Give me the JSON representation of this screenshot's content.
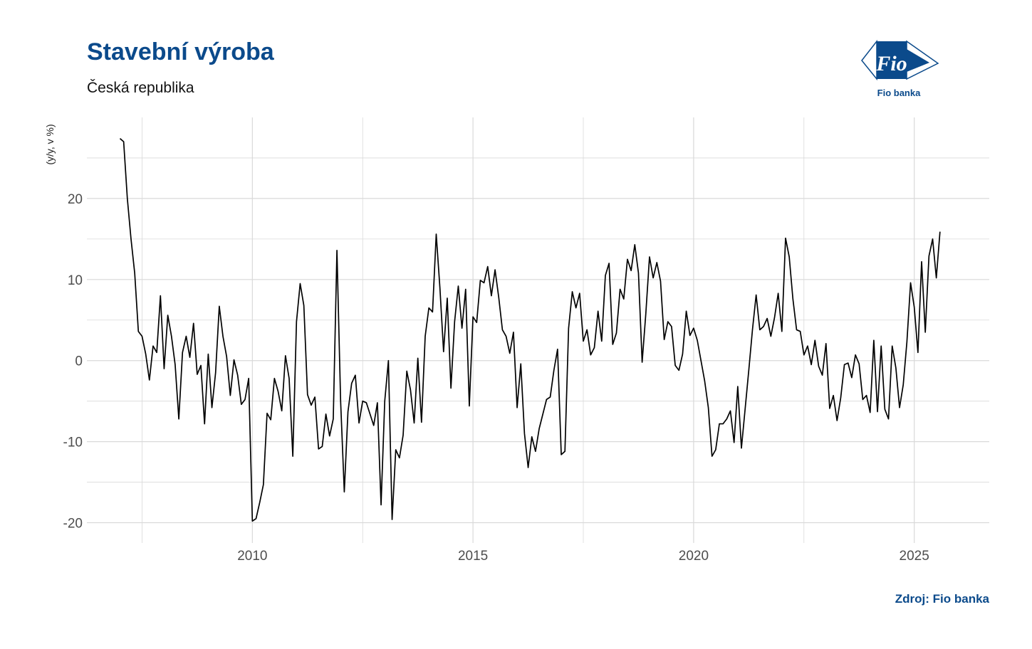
{
  "header": {
    "title": "Stavební výroba",
    "subtitle": "Česká republika"
  },
  "logo": {
    "mark_text": "Fio",
    "caption": "Fio banka",
    "color": "#0b4a8b"
  },
  "source": "Zdroj: Fio banka",
  "colors": {
    "title": "#0b4a8b",
    "line": "#000000",
    "grid": "#d9d9d9"
  },
  "chart_data": {
    "type": "line",
    "title": "Stavební výroba",
    "subtitle": "Česká republika",
    "ylabel": "(y/y, v %)",
    "xlabel": "",
    "x_start": "2007-01",
    "x_frequency": "monthly",
    "xlim": [
      2006.25,
      2026.7
    ],
    "ylim": [
      -22.5,
      30
    ],
    "x_ticks": [
      2010,
      2015,
      2020,
      2025
    ],
    "y_ticks": [
      -20,
      -10,
      0,
      10,
      20
    ],
    "grid": true,
    "legend": "none",
    "series": [
      {
        "values": [
          27.4,
          27.0,
          20.0,
          15.0,
          10.8,
          3.6,
          3.0,
          0.8,
          -2.4,
          1.8,
          1.0,
          8.0,
          -1.0,
          5.6,
          3.0,
          -0.5,
          -7.2,
          1.0,
          3.0,
          0.4,
          4.6,
          -1.7,
          -0.6,
          -7.8,
          0.8,
          -5.8,
          -1.5,
          6.7,
          3.0,
          0.5,
          -4.3,
          0.1,
          -1.8,
          -5.4,
          -4.8,
          -2.2,
          -19.8,
          -19.5,
          -17.5,
          -15.3,
          -6.5,
          -7.3,
          -2.2,
          -3.8,
          -6.2,
          0.6,
          -2.2,
          -11.8,
          4.8,
          9.5,
          6.8,
          -4.2,
          -5.5,
          -4.5,
          -10.9,
          -10.6,
          -6.6,
          -9.3,
          -7.2,
          13.6,
          -5.0,
          -16.2,
          -6.3,
          -2.8,
          -1.8,
          -7.7,
          -5.0,
          -5.2,
          -6.6,
          -8.0,
          -5.2,
          -17.8,
          -5.0,
          0.0,
          -19.6,
          -11.0,
          -12.0,
          -9.2,
          -1.3,
          -3.6,
          -7.7,
          0.3,
          -7.6,
          3.0,
          6.5,
          6.0,
          15.6,
          9.0,
          1.1,
          7.7,
          -3.4,
          4.8,
          9.2,
          4.0,
          8.8,
          -5.6,
          5.4,
          4.7,
          9.9,
          9.6,
          11.6,
          8.0,
          11.2,
          7.8,
          3.8,
          3.0,
          0.9,
          3.5,
          -5.8,
          -0.4,
          -9.0,
          -13.2,
          -9.4,
          -11.2,
          -8.4,
          -6.6,
          -4.8,
          -4.5,
          -1.2,
          1.4,
          -11.6,
          -11.2,
          4.0,
          8.5,
          6.5,
          8.3,
          2.4,
          3.8,
          0.7,
          1.6,
          6.1,
          2.4,
          10.5,
          12.0,
          2.0,
          3.4,
          8.8,
          7.6,
          12.5,
          11.1,
          14.3,
          10.8,
          -0.2,
          5.8,
          12.8,
          10.2,
          12.1,
          9.8,
          2.6,
          4.8,
          4.2,
          -0.6,
          -1.2,
          0.8,
          6.1,
          3.1,
          4.0,
          2.5,
          0.0,
          -2.5,
          -5.8,
          -11.8,
          -11.0,
          -7.8,
          -7.8,
          -7.2,
          -6.2,
          -10.1,
          -3.2,
          -10.8,
          -6.0,
          -1.2,
          3.8,
          8.1,
          3.8,
          4.2,
          5.2,
          3.0,
          5.3,
          8.3,
          3.6,
          15.1,
          12.8,
          7.6,
          3.8,
          3.6,
          0.7,
          1.8,
          -0.5,
          2.5,
          -0.7,
          -1.8,
          2.1,
          -5.9,
          -4.3,
          -7.4,
          -4.6,
          -0.5,
          -0.3,
          -2.1,
          0.7,
          -0.4,
          -4.8,
          -4.3,
          -6.4,
          2.5,
          -6.3,
          1.8,
          -6.0,
          -7.2,
          1.8,
          -0.9,
          -5.8,
          -3.0,
          2.3,
          9.6,
          6.6,
          1.0,
          12.2,
          3.5,
          12.9,
          15.0,
          10.2,
          15.9
        ]
      }
    ]
  }
}
